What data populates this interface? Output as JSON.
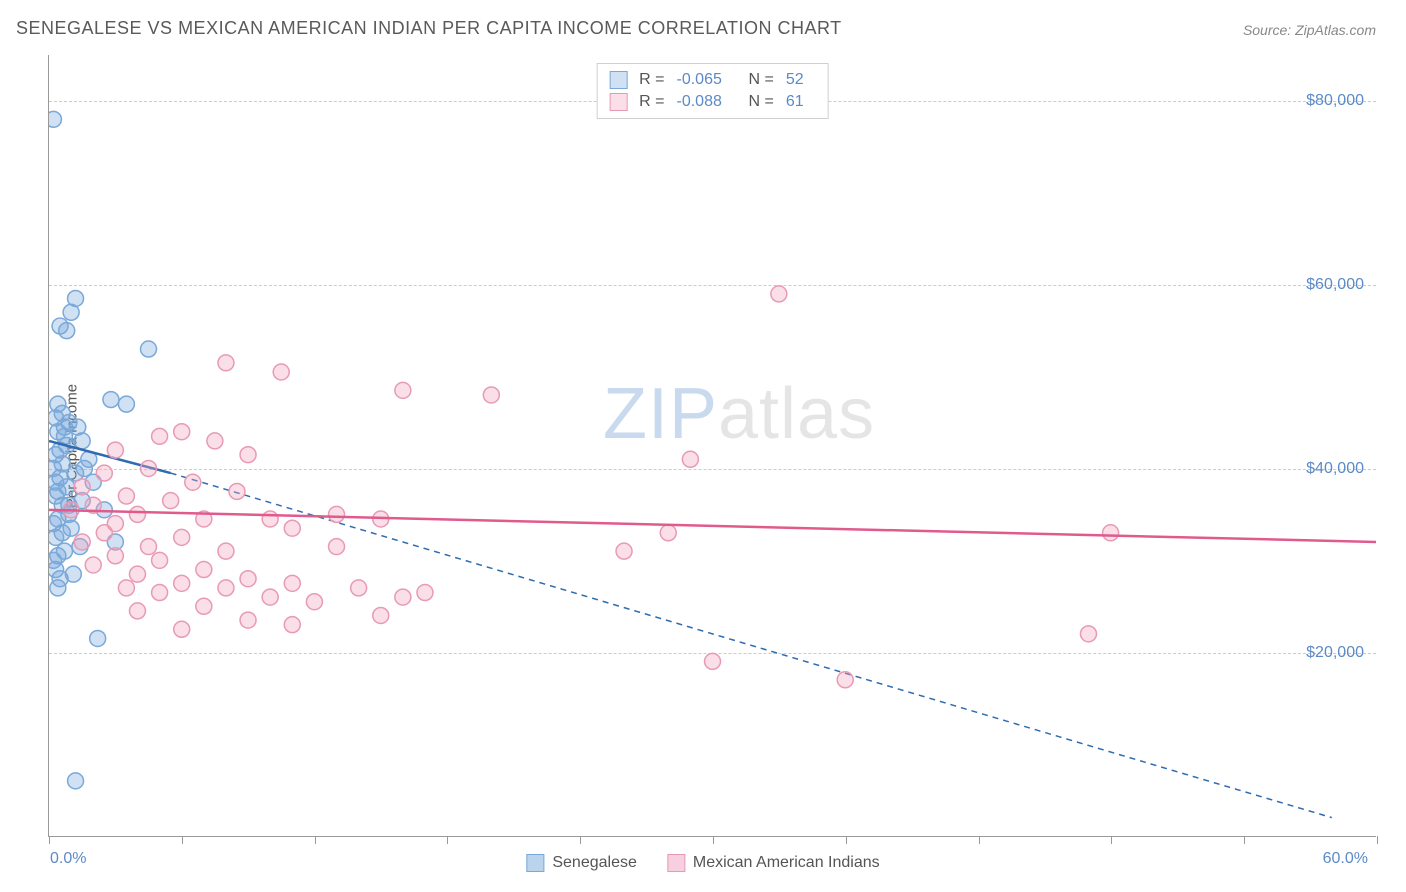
{
  "title": "SENEGALESE VS MEXICAN AMERICAN INDIAN PER CAPITA INCOME CORRELATION CHART",
  "source": "Source: ZipAtlas.com",
  "watermark_zip": "ZIP",
  "watermark_atlas": "atlas",
  "ylabel": "Per Capita Income",
  "chart": {
    "type": "scatter",
    "xlim": [
      0,
      60
    ],
    "ylim": [
      0,
      85000
    ],
    "y_ticks": [
      20000,
      40000,
      60000,
      80000
    ],
    "y_tick_labels": [
      "$20,000",
      "$40,000",
      "$60,000",
      "$80,000"
    ],
    "x_ticks": [
      0,
      6,
      12,
      18,
      24,
      30,
      36,
      42,
      48,
      54,
      60
    ],
    "x_axis_min_label": "0.0%",
    "x_axis_max_label": "60.0%",
    "background": "#ffffff",
    "grid_color": "#cccccc",
    "axis_color": "#999999",
    "marker_radius": 8,
    "marker_stroke_width": 1.5,
    "line_width_solid": 2.5,
    "line_width_dashed": 1.5,
    "series": [
      {
        "name": "Senegalese",
        "fill": "rgba(120,170,220,0.35)",
        "stroke": "#7aa8d8",
        "line_color": "#2e6bb0",
        "R": "-0.065",
        "N": "52",
        "trend_solid": {
          "x1": 0,
          "y1": 43000,
          "x2": 5.5,
          "y2": 39500
        },
        "trend_dashed": {
          "x1": 5.5,
          "y1": 39500,
          "x2": 58,
          "y2": 2000
        },
        "points": [
          [
            0.2,
            78000
          ],
          [
            1.2,
            58500
          ],
          [
            1.0,
            57000
          ],
          [
            0.5,
            55500
          ],
          [
            0.8,
            55000
          ],
          [
            4.5,
            53000
          ],
          [
            0.4,
            47000
          ],
          [
            2.8,
            47500
          ],
          [
            3.5,
            47000
          ],
          [
            0.6,
            46000
          ],
          [
            0.3,
            45500
          ],
          [
            0.9,
            45000
          ],
          [
            1.3,
            44500
          ],
          [
            0.4,
            44000
          ],
          [
            0.7,
            43500
          ],
          [
            1.5,
            43000
          ],
          [
            0.5,
            42000
          ],
          [
            0.3,
            41500
          ],
          [
            1.8,
            41000
          ],
          [
            0.6,
            40500
          ],
          [
            0.2,
            40000
          ],
          [
            1.2,
            39500
          ],
          [
            0.5,
            39000
          ],
          [
            2.0,
            38500
          ],
          [
            0.8,
            38000
          ],
          [
            0.4,
            37500
          ],
          [
            0.3,
            37000
          ],
          [
            1.5,
            36500
          ],
          [
            0.6,
            36000
          ],
          [
            2.5,
            35500
          ],
          [
            0.9,
            35000
          ],
          [
            0.4,
            34500
          ],
          [
            0.2,
            34000
          ],
          [
            1.0,
            33500
          ],
          [
            0.6,
            33000
          ],
          [
            0.3,
            32500
          ],
          [
            3.0,
            32000
          ],
          [
            1.4,
            31500
          ],
          [
            0.7,
            31000
          ],
          [
            0.4,
            30500
          ],
          [
            0.2,
            30000
          ],
          [
            0.4,
            27000
          ],
          [
            2.2,
            21500
          ],
          [
            0.3,
            29000
          ],
          [
            1.1,
            28500
          ],
          [
            0.5,
            28000
          ],
          [
            0.8,
            42500
          ],
          [
            1.6,
            40000
          ],
          [
            0.3,
            38500
          ],
          [
            0.9,
            36000
          ],
          [
            1.2,
            6000
          ],
          [
            0.7,
            44500
          ]
        ]
      },
      {
        "name": "Mexican American Indians",
        "fill": "rgba(240,160,190,0.35)",
        "stroke": "#e89ab5",
        "line_color": "#e05a8c",
        "R": "-0.088",
        "N": "61",
        "trend_solid": {
          "x1": 0,
          "y1": 35500,
          "x2": 60,
          "y2": 32000
        },
        "points": [
          [
            33,
            59000
          ],
          [
            8,
            51500
          ],
          [
            10.5,
            50500
          ],
          [
            16,
            48500
          ],
          [
            20,
            48000
          ],
          [
            6,
            44000
          ],
          [
            5,
            43500
          ],
          [
            7.5,
            43000
          ],
          [
            3,
            42000
          ],
          [
            9,
            41500
          ],
          [
            29,
            41000
          ],
          [
            4.5,
            40000
          ],
          [
            2.5,
            39500
          ],
          [
            6.5,
            38500
          ],
          [
            1.5,
            38000
          ],
          [
            8.5,
            37500
          ],
          [
            3.5,
            37000
          ],
          [
            5.5,
            36500
          ],
          [
            2,
            36000
          ],
          [
            1,
            35500
          ],
          [
            4,
            35000
          ],
          [
            13,
            35000
          ],
          [
            7,
            34500
          ],
          [
            10,
            34500
          ],
          [
            15,
            34500
          ],
          [
            3,
            34000
          ],
          [
            11,
            33500
          ],
          [
            2.5,
            33000
          ],
          [
            28,
            33000
          ],
          [
            48,
            33000
          ],
          [
            6,
            32500
          ],
          [
            1.5,
            32000
          ],
          [
            4.5,
            31500
          ],
          [
            8,
            31000
          ],
          [
            26,
            31000
          ],
          [
            3,
            30500
          ],
          [
            5,
            30000
          ],
          [
            2,
            29500
          ],
          [
            7,
            29000
          ],
          [
            4,
            28500
          ],
          [
            9,
            28000
          ],
          [
            6,
            27500
          ],
          [
            11,
            27500
          ],
          [
            3.5,
            27000
          ],
          [
            8,
            27000
          ],
          [
            14,
            27000
          ],
          [
            5,
            26500
          ],
          [
            10,
            26000
          ],
          [
            16,
            26000
          ],
          [
            17,
            26500
          ],
          [
            12,
            25500
          ],
          [
            7,
            25000
          ],
          [
            4,
            24500
          ],
          [
            15,
            24000
          ],
          [
            9,
            23500
          ],
          [
            11,
            23000
          ],
          [
            6,
            22500
          ],
          [
            47,
            22000
          ],
          [
            30,
            19000
          ],
          [
            36,
            17000
          ],
          [
            13,
            31500
          ]
        ]
      }
    ]
  },
  "bottom_legend": {
    "items": [
      {
        "label": "Senegalese",
        "fill": "rgba(120,170,220,0.5)",
        "stroke": "#7aa8d8"
      },
      {
        "label": "Mexican American Indians",
        "fill": "rgba(240,160,190,0.5)",
        "stroke": "#e89ab5"
      }
    ]
  }
}
